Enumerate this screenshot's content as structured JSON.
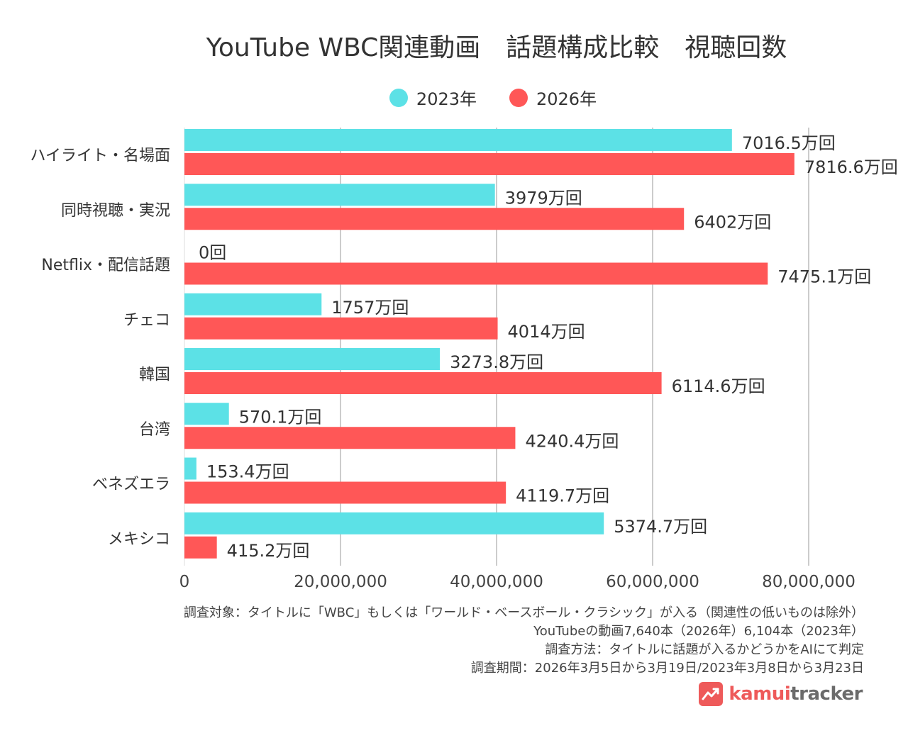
{
  "chart_data": {
    "type": "bar",
    "orientation": "horizontal",
    "title": "YouTube WBC関連動画　話題構成比較　視聴回数",
    "categories": [
      "ハイライト・名場面",
      "同時視聴・実況",
      "Netflix・配信話題",
      "チェコ",
      "韓国",
      "台湾",
      "ベネズエラ",
      "メキシコ"
    ],
    "series": [
      {
        "name": "2023年",
        "color": "#5ce1e6",
        "values": [
          70165000,
          39790000,
          0,
          17570000,
          32738000,
          5701000,
          1534000,
          53747000
        ],
        "labels": [
          "7016.5万回",
          "3979万回",
          "0回",
          "1757万回",
          "3273.8万回",
          "570.1万回",
          "153.4万回",
          "5374.7万回"
        ]
      },
      {
        "name": "2026年",
        "color": "#ff5757",
        "values": [
          78166000,
          64020000,
          74751000,
          40140000,
          61146000,
          42404000,
          41197000,
          4152000
        ],
        "labels": [
          "7816.6万回",
          "6402万回",
          "7475.1万回",
          "4014万回",
          "6114.6万回",
          "4240.4万回",
          "4119.7万回",
          "415.2万回"
        ]
      }
    ],
    "xlim": [
      0,
      80000000
    ],
    "xticks": [
      0,
      20000000,
      40000000,
      60000000,
      80000000
    ],
    "xtick_labels": [
      "0",
      "20,000,000",
      "40,000,000",
      "60,000,000",
      "80,000,000"
    ],
    "grid": true,
    "legend_position": "top-center"
  },
  "notes": [
    "調査対象：タイトルに「WBC」もしくは「ワールド・ベースボール・クラシック」が入る（関連性の低いものは除外）",
    "YouTubeの動画7,640本（2026年）6,104本（2023年）",
    "調査方法：タイトルに話題が入るかどうかをAIにて判定",
    "調査期間：2026年3月5日から3月19日/2023年3月8日から3月23日"
  ],
  "logo": {
    "part1": "kamui",
    "part2": "tracker",
    "color": "#ee5a5a"
  }
}
